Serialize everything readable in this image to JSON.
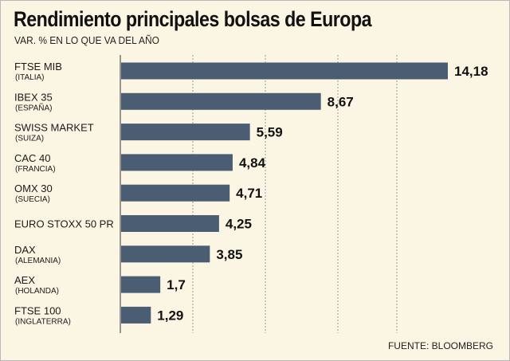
{
  "title": "Rendimiento principales bolsas de Europa",
  "subtitle": "VAR. % EN LO QUE VA DEL AÑO",
  "source": "FUENTE: BLOOMBERG",
  "colors": {
    "bar": "#4a5d73",
    "background": "#fbf5e3",
    "grid": "#9a9a9a",
    "text": "#111111"
  },
  "chart_data": {
    "type": "bar",
    "orientation": "horizontal",
    "title": "Rendimiento principales bolsas de Europa",
    "subtitle": "VAR. % EN LO QUE VA DEL AÑO",
    "xlabel": "",
    "ylabel": "",
    "xlim": [
      0,
      15
    ],
    "grid": "vertical dashed",
    "categories": [
      {
        "name": "FTSE MIB",
        "country": "(ITALIA)"
      },
      {
        "name": "IBEX 35",
        "country": "(ESPAÑA)"
      },
      {
        "name": "SWISS MARKET",
        "country": "(SUIZA)"
      },
      {
        "name": "CAC 40",
        "country": "(FRANCIA)"
      },
      {
        "name": "OMX 30",
        "country": "(SUECIA)"
      },
      {
        "name": "EURO STOXX 50 PR",
        "country": ""
      },
      {
        "name": "DAX",
        "country": "(ALEMANIA)"
      },
      {
        "name": "AEX",
        "country": "(HOLANDA)"
      },
      {
        "name": "FTSE 100",
        "country": "(INGLATERRA)"
      }
    ],
    "values": [
      14.18,
      8.67,
      5.59,
      4.84,
      4.71,
      4.25,
      3.85,
      1.7,
      1.29
    ],
    "value_labels": [
      "14,18",
      "8,67",
      "5,59",
      "4,84",
      "4,71",
      "4,25",
      "3,85",
      "1,7",
      "1,29"
    ]
  }
}
